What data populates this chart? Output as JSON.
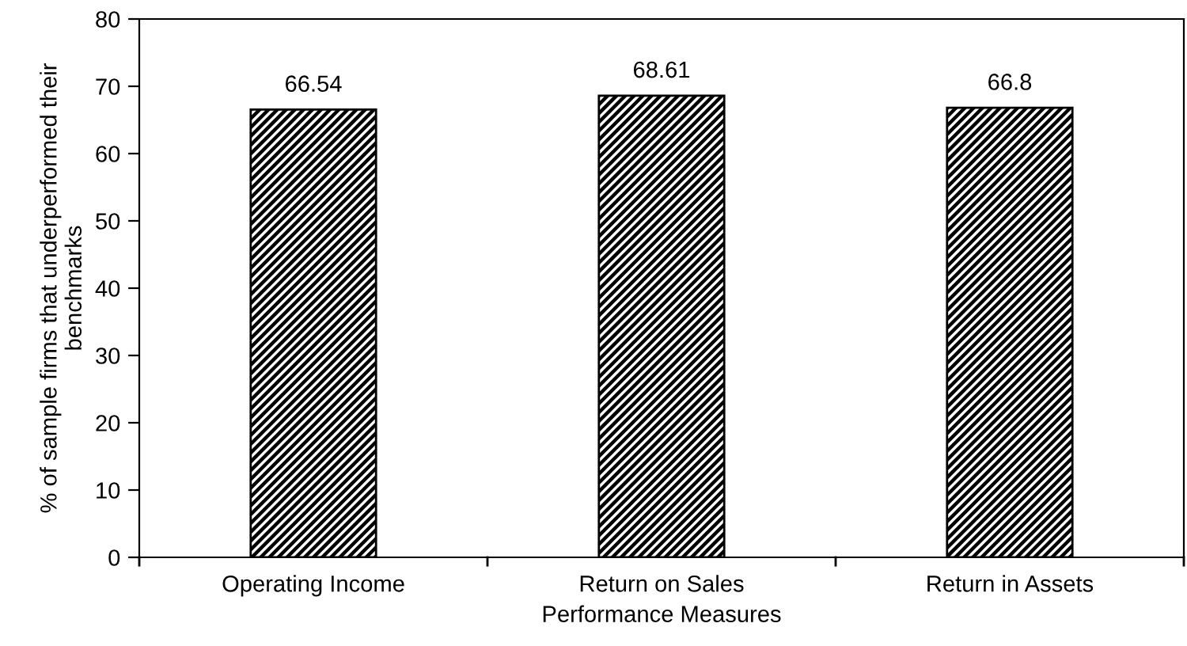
{
  "chart_data": {
    "type": "bar",
    "xlabel": "Performance Measures",
    "ylabel": "% of sample firms that underperformed their\nbenchmarks",
    "categories": [
      "Operating Income",
      "Return on Sales",
      "Return in Assets"
    ],
    "values": [
      66.54,
      68.61,
      66.8
    ],
    "ylim": [
      0,
      80
    ],
    "yticks": [
      0,
      10,
      20,
      30,
      40,
      50,
      60,
      70,
      80
    ],
    "data_labels": true,
    "grid": false,
    "legend": false
  }
}
